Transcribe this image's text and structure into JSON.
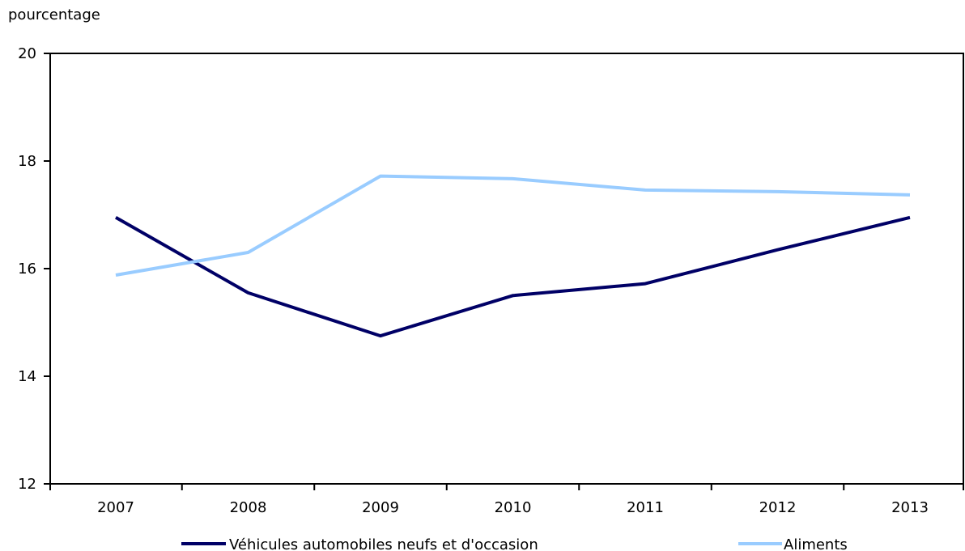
{
  "chart_data": {
    "type": "line",
    "title": "",
    "ylabel": "pourcentage",
    "xlabel": "",
    "ylim": [
      12,
      20
    ],
    "yticks": [
      12,
      14,
      16,
      18,
      20
    ],
    "grid": false,
    "legend": "bottom",
    "categories": [
      "2007",
      "2008",
      "2009",
      "2010",
      "2011",
      "2012",
      "2013"
    ],
    "series": [
      {
        "name": "Véhicules automobiles neufs et d'occasion",
        "color": "#000066",
        "values": [
          16.95,
          15.55,
          14.75,
          15.5,
          15.72,
          16.35,
          16.95
        ]
      },
      {
        "name": "Aliments",
        "color": "#99ccff",
        "values": [
          15.88,
          16.3,
          17.72,
          17.67,
          17.46,
          17.43,
          17.37
        ]
      }
    ]
  }
}
